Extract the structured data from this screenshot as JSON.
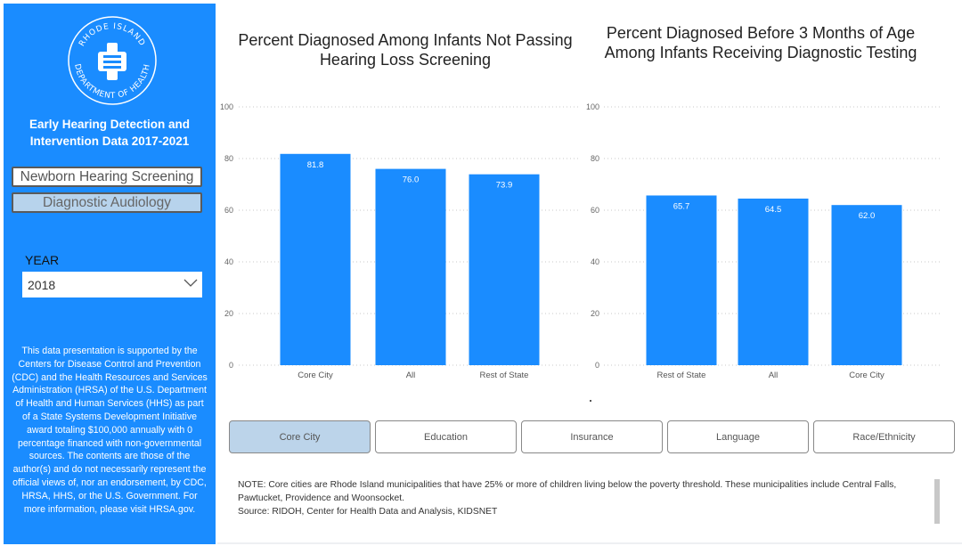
{
  "sidebar": {
    "logo_text": "RHODE ISLAND DEPARTMENT OF HEALTH",
    "title": "Early Hearing Detection and Intervention Data 2017-2021",
    "nav_newborn": "Newborn Hearing Screening",
    "nav_diagnostic": "Diagnostic Audiology",
    "year_label": "YEAR",
    "year_value": "2018",
    "disclaimer": "This data presentation is supported by the Centers for Disease Control and Prevention (CDC) and the Health Resources and Services Administration (HRSA) of the U.S. Department of Health and Human Services (HHS) as part of a State Systems Development Initiative award totaling $100,000 annually with 0 percentage financed with non-governmental sources. The contents are those of the author(s) and do not necessarily represent the official views of, nor an endorsement, by CDC, HRSA, HHS, or the U.S. Government. For more information, please visit HRSA.gov."
  },
  "chart_data": [
    {
      "type": "bar",
      "title": "Percent Diagnosed Among Infants Not Passing Hearing Loss Screening",
      "categories": [
        "Core City",
        "All",
        "Rest of State"
      ],
      "values": [
        81.8,
        76.0,
        73.9
      ],
      "value_labels": [
        "81.8",
        "76.0",
        "73.9"
      ],
      "yticks": [
        "0",
        "20",
        "40",
        "60",
        "80",
        "100"
      ],
      "ylim": [
        0,
        100
      ],
      "color": "#1a8cff"
    },
    {
      "type": "bar",
      "title": "Percent Diagnosed Before 3 Months of Age Among Infants Receiving Diagnostic Testing",
      "categories": [
        "Rest of State",
        "All",
        "Core City"
      ],
      "values": [
        65.7,
        64.5,
        62.0
      ],
      "value_labels": [
        "65.7",
        "64.5",
        "62.0"
      ],
      "yticks": [
        "0",
        "20",
        "40",
        "60",
        "80",
        "100"
      ],
      "ylim": [
        0,
        100
      ],
      "color": "#1a8cff"
    }
  ],
  "filters": [
    "Core City",
    "Education",
    "Insurance",
    "Language",
    "Race/Ethnicity"
  ],
  "active_filter": "Core City",
  "note": {
    "line1": "NOTE: Core cities are Rhode Island municipalities that have 25% or more of children living below the poverty threshold. These municipalities include Central Falls, Pawtucket, Providence and Woonsocket.",
    "line2": "Source: RIDOH, Center for Health Data and Analysis, KIDSNET"
  },
  "colors": {
    "accent": "#1a8cff",
    "active_filter": "#bcd4ea"
  }
}
